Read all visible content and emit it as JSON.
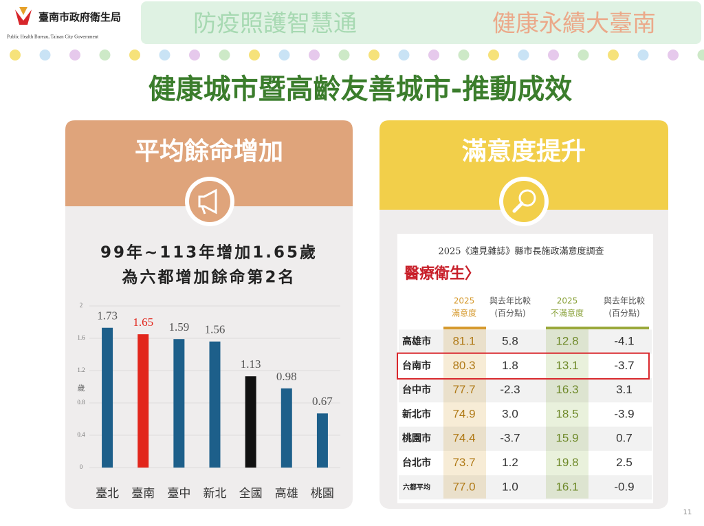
{
  "header": {
    "logo_text": "臺南市政府衛生局",
    "logo_sub": "Public Health Bureau, Tainan City Government",
    "slogan_left": "防疫照護智慧通",
    "slogan_right": "健康永續大臺南"
  },
  "title": "健康城市暨高齡友善城市-推動成效",
  "left_panel": {
    "heading": "平均餘命增加",
    "summary": [
      "99年~113年增加1.65歲",
      "為六都增加餘命第2名"
    ]
  },
  "chart_data": {
    "type": "bar",
    "categories": [
      "臺北",
      "臺南",
      "臺中",
      "新北",
      "全國",
      "高雄",
      "桃園"
    ],
    "values": [
      1.73,
      1.65,
      1.59,
      1.56,
      1.13,
      0.98,
      0.67
    ],
    "colors": [
      "#1d5f8a",
      "#e2261c",
      "#1d5f8a",
      "#1d5f8a",
      "#111111",
      "#1d5f8a",
      "#1d5f8a"
    ],
    "label_colors": [
      "#555555",
      "#e2261c",
      "#555555",
      "#555555",
      "#555555",
      "#555555",
      "#555555"
    ],
    "ylabel": "歲",
    "ylim": [
      0,
      2
    ],
    "yticks": [
      0,
      0.4,
      0.8,
      1.2,
      1.6,
      2
    ],
    "grid": true
  },
  "right_panel": {
    "heading": "滿意度提升",
    "table": {
      "caption": "2025《遠見雜誌》縣市長施政滿意度調查",
      "subtitle": "醫療衛生〉",
      "columns": [
        [
          "2025",
          "滿意度"
        ],
        [
          "與去年比較",
          "(百分點)"
        ],
        [
          "2025",
          "不滿意度"
        ],
        [
          "與去年比較",
          "(百分點)"
        ]
      ],
      "rows": [
        [
          "高雄市",
          "81.1",
          "5.8",
          "12.8",
          "-4.1"
        ],
        [
          "台南市",
          "80.3",
          "1.8",
          "13.1",
          "-3.7"
        ],
        [
          "台中市",
          "77.7",
          "-2.3",
          "16.3",
          "3.1"
        ],
        [
          "新北市",
          "74.9",
          "3.0",
          "18.5",
          "-3.9"
        ],
        [
          "桃園市",
          "74.4",
          "-3.7",
          "15.9",
          "0.7"
        ],
        [
          "台北市",
          "73.7",
          "1.2",
          "19.8",
          "2.5"
        ],
        [
          "六都平均",
          "77.0",
          "1.0",
          "16.1",
          "-0.9"
        ]
      ]
    }
  },
  "page_number": "11"
}
